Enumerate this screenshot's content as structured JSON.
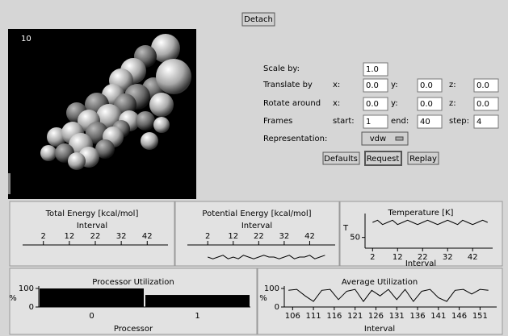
{
  "toolbar": {
    "detach": "Detach"
  },
  "viewer": {
    "frame_label": "10"
  },
  "controls": {
    "scale": {
      "label": "Scale by:",
      "value": "1.0"
    },
    "translate": {
      "label": "Translate by",
      "x_label": "x:",
      "x": "0.0",
      "y_label": "y:",
      "y": "0.0",
      "z_label": "z:",
      "z": "0.0"
    },
    "rotate": {
      "label": "Rotate around",
      "x_label": "x:",
      "x": "0.0",
      "y_label": "y:",
      "y": "0.0",
      "z_label": "z:",
      "z": "0.0"
    },
    "frames": {
      "label": "Frames",
      "start_label": "start:",
      "start": "1",
      "end_label": "end:",
      "end": "40",
      "step_label": "step:",
      "step": "4"
    },
    "representation": {
      "label": "Representation:",
      "value": "vdw"
    },
    "buttons": [
      "Defaults",
      "Request",
      "Replay"
    ]
  },
  "charts": [
    {
      "type": "line",
      "title": "Total Energy [kcal/mol]",
      "x_label": "Interval",
      "xlim": [
        -6,
        50
      ],
      "xticks": [
        2,
        12,
        22,
        32,
        42
      ],
      "color": "#000000"
    },
    {
      "type": "line",
      "title": "Potential Energy [kcal/mol]",
      "x_label": "Interval",
      "xlim": [
        -6,
        52
      ],
      "xticks": [
        2,
        12,
        22,
        32,
        42
      ],
      "ylim": [
        0,
        10
      ],
      "color": "#000000",
      "x": [
        2,
        4,
        6,
        8,
        10,
        12,
        14,
        16,
        18,
        20,
        22,
        24,
        26,
        28,
        30,
        32,
        34,
        36,
        38,
        40,
        42,
        44,
        46,
        48
      ],
      "values": [
        5,
        4,
        5,
        6,
        4,
        5,
        4,
        6,
        5,
        4,
        5,
        6,
        5,
        5,
        4,
        5,
        6,
        4,
        5,
        5,
        6,
        4,
        5,
        6
      ]
    },
    {
      "type": "line",
      "title": "Temperature [K]",
      "x_label": "Interval",
      "y_label": "T",
      "xlim": [
        -1,
        50
      ],
      "xticks": [
        2,
        12,
        22,
        32,
        42
      ],
      "ylim": [
        45,
        60
      ],
      "yticks": [
        50
      ],
      "color": "#000000",
      "x": [
        2,
        4,
        6,
        8,
        10,
        12,
        14,
        16,
        18,
        20,
        22,
        24,
        26,
        28,
        30,
        32,
        34,
        36,
        38,
        40,
        42,
        44,
        46,
        48
      ],
      "values": [
        57,
        58,
        56,
        57,
        58,
        56,
        57,
        58,
        57,
        56,
        57,
        58,
        57,
        56,
        57,
        58,
        57,
        56,
        58,
        57,
        56,
        57,
        58,
        57
      ]
    },
    {
      "type": "bar",
      "title": "Processor Utilization",
      "x_label": "Processor",
      "y_label": "%",
      "categories": [
        "0",
        "1"
      ],
      "values": [
        100,
        65
      ],
      "ylim": [
        0,
        100
      ],
      "yticks": [
        0,
        100
      ],
      "color": "#000000"
    },
    {
      "type": "line",
      "title": "Average Utilization",
      "x_label": "Interval",
      "y_label": "%",
      "xlim": [
        104,
        155
      ],
      "xticks": [
        106,
        111,
        116,
        121,
        126,
        131,
        136,
        141,
        146,
        151
      ],
      "ylim": [
        0,
        100
      ],
      "yticks": [
        0,
        100
      ],
      "color": "#000000",
      "x": [
        105,
        107,
        109,
        111,
        113,
        115,
        117,
        119,
        121,
        123,
        125,
        127,
        129,
        131,
        133,
        135,
        137,
        139,
        141,
        143,
        145,
        147,
        149,
        151,
        153
      ],
      "values": [
        90,
        95,
        60,
        30,
        90,
        95,
        40,
        85,
        95,
        30,
        90,
        60,
        95,
        40,
        95,
        30,
        85,
        95,
        50,
        30,
        90,
        95,
        70,
        95,
        90
      ]
    }
  ]
}
